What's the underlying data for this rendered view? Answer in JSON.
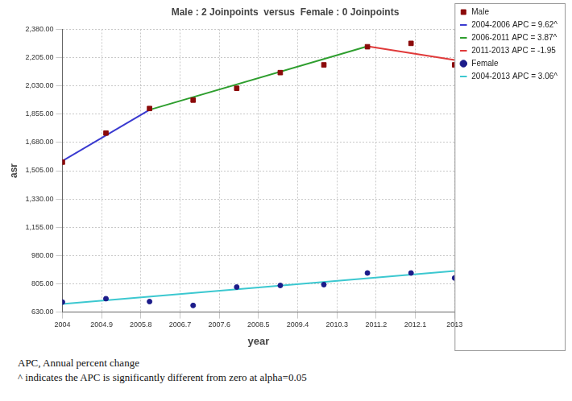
{
  "chart_data": {
    "type": "line",
    "title": "Male : 2 Joinpoints  versus  Female : 0 Joinpoints",
    "x_label": "year",
    "y_label": "asr",
    "xlim": [
      2004,
      2013
    ],
    "xticks": [
      2004,
      2004.9,
      2005.8,
      2006.7,
      2007.6,
      2008.5,
      2009.4,
      2010.3,
      2011.2,
      2012.1,
      2013
    ],
    "ylim": [
      630,
      2380
    ],
    "yticks": [
      {
        "value": 630,
        "label": "630.00"
      },
      {
        "value": 805,
        "label": "805.00"
      },
      {
        "value": 980,
        "label": "980.00"
      },
      {
        "value": 1155,
        "label": "1,155.00"
      },
      {
        "value": 1330,
        "label": "1,330.00"
      },
      {
        "value": 1505,
        "label": "1,505.00"
      },
      {
        "value": 1680,
        "label": "1,680.00"
      },
      {
        "value": 1855,
        "label": "1,855.00"
      },
      {
        "value": 2030,
        "label": "2,030.00"
      },
      {
        "value": 2205,
        "label": "2,205.00"
      },
      {
        "value": 2380,
        "label": "2,380.00"
      }
    ],
    "grid": true,
    "legend": "upper right",
    "series": [
      {
        "name": "Male",
        "color": "#8b0a0a",
        "marker": "square",
        "line_style": "none",
        "x": [
          2004,
          2005,
          2006,
          2007,
          2008,
          2009,
          2010,
          2011,
          2012,
          2013
        ],
        "values": [
          1558,
          1738,
          1890,
          1942,
          2015,
          2112,
          2160,
          2272,
          2293,
          2160
        ]
      },
      {
        "name": "2004-2006 APC = 9.62^",
        "color": "#3a3ad0",
        "marker": "none",
        "line_style": "solid",
        "x": [
          2004,
          2006
        ],
        "values": [
          1565,
          1882
        ]
      },
      {
        "name": "2006-2011 APC = 3.87^",
        "color": "#2e9e2e",
        "marker": "none",
        "line_style": "solid",
        "x": [
          2006,
          2011
        ],
        "values": [
          1882,
          2275
        ]
      },
      {
        "name": "2011-2013 APC = -1.95",
        "color": "#e03a3a",
        "marker": "none",
        "line_style": "solid",
        "x": [
          2011,
          2013
        ],
        "values": [
          2275,
          2190
        ]
      },
      {
        "name": "Female",
        "color": "#1c1c8a",
        "marker": "circle",
        "line_style": "none",
        "x": [
          2004,
          2005,
          2006,
          2007,
          2008,
          2009,
          2010,
          2011,
          2012,
          2013
        ],
        "values": [
          692,
          713,
          695,
          671,
          785,
          795,
          800,
          872,
          872,
          841
        ]
      },
      {
        "name": "2004-2013 APC = 3.06^",
        "color": "#3cc8d0",
        "marker": "none",
        "line_style": "solid",
        "x": [
          2004,
          2013
        ],
        "values": [
          680,
          885
        ]
      }
    ],
    "annotations": [
      "APC, Annual percent change",
      "^ indicates the APC is significantly different from zero at alpha=0.05"
    ]
  }
}
